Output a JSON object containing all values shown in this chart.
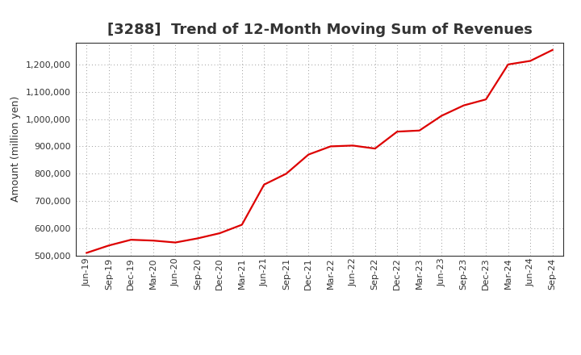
{
  "title": "[3288]  Trend of 12-Month Moving Sum of Revenues",
  "ylabel": "Amount (million yen)",
  "line_color": "#dd0000",
  "line_width": 1.6,
  "background_color": "#ffffff",
  "plot_bg_color": "#ffffff",
  "grid_color": "#999999",
  "title_color": "#333333",
  "ylim": [
    500000,
    1280000
  ],
  "yticks": [
    500000,
    600000,
    700000,
    800000,
    900000,
    1000000,
    1100000,
    1200000
  ],
  "values": [
    510000,
    537000,
    558000,
    555000,
    548000,
    563000,
    582000,
    613000,
    760000,
    800000,
    870000,
    900000,
    903000,
    892000,
    954000,
    958000,
    1012000,
    1050000,
    1072000,
    1200000,
    1213000,
    1253000
  ],
  "xtick_labels": [
    "Jun-19",
    "Sep-19",
    "Dec-19",
    "Mar-20",
    "Jun-20",
    "Sep-20",
    "Dec-20",
    "Mar-21",
    "Jun-21",
    "Sep-21",
    "Dec-21",
    "Mar-22",
    "Jun-22",
    "Sep-22",
    "Dec-22",
    "Mar-23",
    "Jun-23",
    "Sep-23",
    "Dec-23",
    "Mar-24",
    "Jun-24",
    "Sep-24"
  ],
  "title_fontsize": 13,
  "axis_label_fontsize": 9,
  "tick_fontsize": 8
}
